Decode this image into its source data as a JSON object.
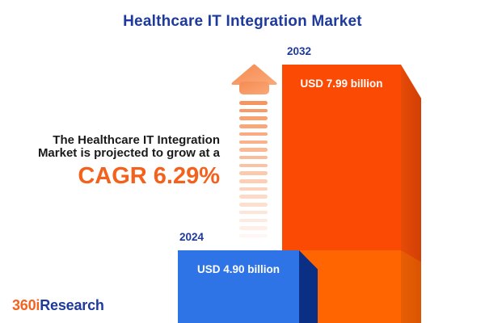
{
  "title": "Healthcare IT Integration Market",
  "description": {
    "line1": "The Healthcare IT Integration",
    "line2": "Market is projected to grow at a",
    "cagr": "CAGR 6.29%"
  },
  "chart_data": {
    "type": "bar",
    "orientation": "vertical",
    "title": "Healthcare IT Integration Market",
    "categories": [
      "2024",
      "2032"
    ],
    "values": [
      4.9,
      7.99
    ],
    "unit": "USD billion",
    "value_labels": [
      "USD 4.90 billion",
      "USD 7.99 billion"
    ],
    "cagr_percent": 6.29,
    "annotation": "The Healthcare IT Integration Market is projected to grow at a CAGR 6.29%",
    "series_colors": [
      "#2F74E6",
      "#FB4A04"
    ],
    "legend": "none",
    "grid": "off"
  },
  "logo": {
    "part1": "360i",
    "part2": "Research"
  },
  "colors": {
    "title_blue": "#1E3A9C",
    "accent_orange": "#F4611C",
    "bar_2024_front": "#2F74E6",
    "bar_2024_side": "#0A2F85",
    "bar_2032_front_top": "#FB4A04",
    "bar_2032_front_bottom": "#FF6501",
    "bar_2032_side_top": "#D94205",
    "bar_2032_side_bottom": "#E25A02",
    "arrow_orange": "#F79560",
    "logo_orange": "#F26322",
    "logo_blue": "#1E3A9C"
  }
}
